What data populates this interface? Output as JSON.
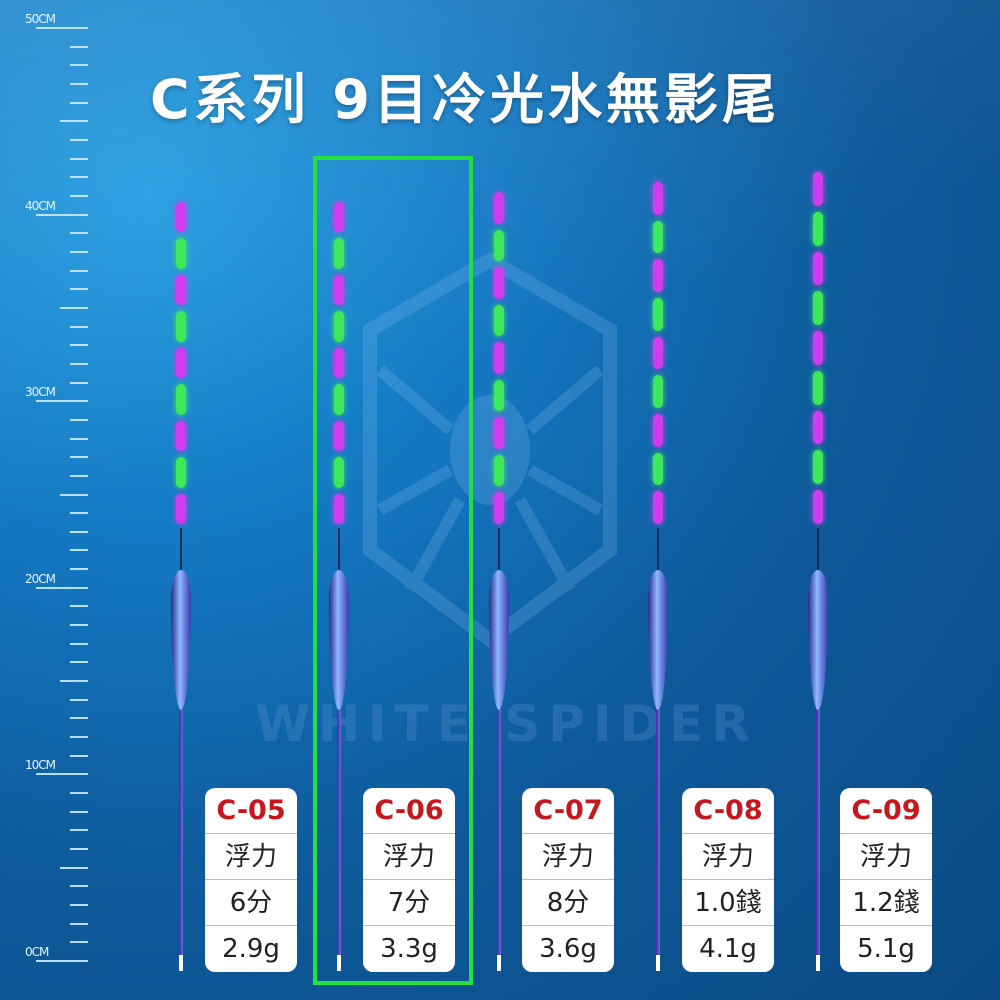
{
  "title": "C系列  9目冷光水無影尾",
  "watermark": "WHITE SPIDER",
  "ruler": {
    "labels": [
      "50CM",
      "40CM",
      "30CM",
      "20CM",
      "10CM",
      "0CM"
    ]
  },
  "colors": {
    "segment_a": "#d23cf0",
    "segment_b": "#3de85a",
    "highlight": "#22e040",
    "code": "#c8161d"
  },
  "selected_model": "C-06",
  "products": [
    {
      "code": "C-05",
      "label": "浮力",
      "buoyancy": "6分",
      "weight": "2.9g"
    },
    {
      "code": "C-06",
      "label": "浮力",
      "buoyancy": "7分",
      "weight": "3.3g"
    },
    {
      "code": "C-07",
      "label": "浮力",
      "buoyancy": "8分",
      "weight": "3.6g"
    },
    {
      "code": "C-08",
      "label": "浮力",
      "buoyancy": "1.0錢",
      "weight": "4.1g"
    },
    {
      "code": "C-09",
      "label": "浮力",
      "buoyancy": "1.2錢",
      "weight": "5.1g"
    }
  ]
}
